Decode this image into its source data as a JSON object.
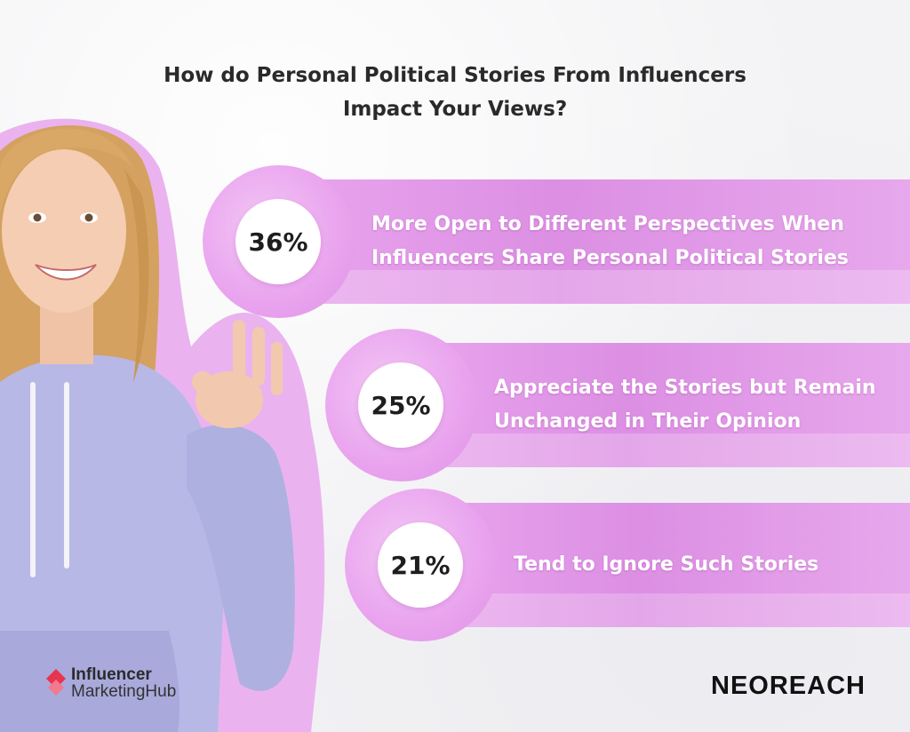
{
  "title": {
    "line1": "How do Personal Political Stories From Influencers",
    "line2": "Impact Your Views?"
  },
  "chart_data": {
    "type": "bar",
    "title": "How do Personal Political Stories From Influencers Impact Your Views?",
    "unit": "%",
    "categories": [
      "More Open to Different Perspectives When Influencers Share Personal Political Stories",
      "Appreciate the Stories but Remain Unchanged in Their Opinion",
      "Tend to Ignore Such Stories"
    ],
    "values": [
      36,
      25,
      21
    ],
    "items": [
      {
        "value_label": "36%",
        "label_line1": "More Open to Different Perspectives When",
        "label_line2": "Influencers Share Personal Political Stories"
      },
      {
        "value_label": "25%",
        "label_line1": "Appreciate the Stories but Remain",
        "label_line2": "Unchanged in Their Opinion"
      },
      {
        "value_label": "21%",
        "label_line1": "Tend to Ignore Such Stories",
        "label_line2": ""
      }
    ]
  },
  "colors": {
    "band": "#dc8fe3",
    "hoodie": "#b7b8e6",
    "hair": "#d9a867",
    "accent_logo": "#e8344f"
  },
  "logos": {
    "imh_line1": "Influencer",
    "imh_line2": "MarketingHub",
    "neoreach": "NEOREACH"
  },
  "icons": {
    "imh_mark": "influencer-marketinghub-logo-icon"
  }
}
